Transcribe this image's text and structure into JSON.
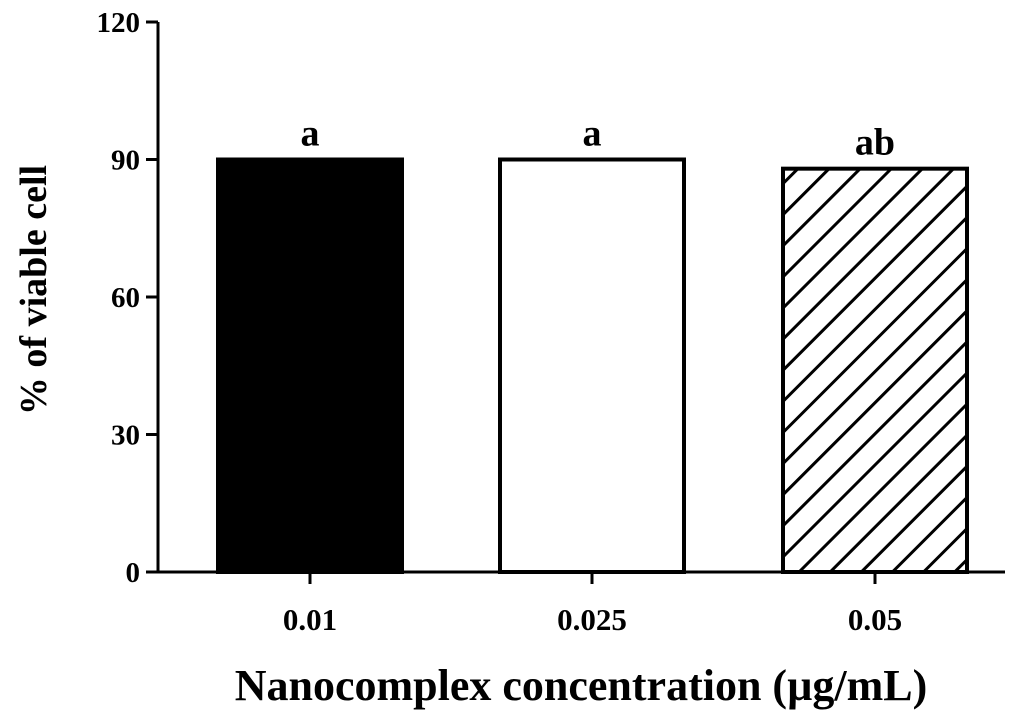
{
  "chart_data": {
    "type": "bar",
    "title": "",
    "xlabel": "Nanocomplex concentration (µg/mL)",
    "ylabel": "% of viable cell",
    "categories": [
      "0.01",
      "0.025",
      "0.05"
    ],
    "values": [
      90,
      90,
      88
    ],
    "annotations": [
      "a",
      "a",
      "ab"
    ],
    "bar_fills": [
      "solid-black",
      "white",
      "diagonal-hatch"
    ],
    "ylim": [
      0,
      120
    ],
    "yticks": [
      0,
      30,
      60,
      90,
      120
    ],
    "yticks_labels": [
      "0",
      "30",
      "60",
      "90",
      "120"
    ],
    "grid": false,
    "legend": "none",
    "colors": {
      "axis": "#000000",
      "bar_outline": "#000000",
      "bar_solid": "#000000",
      "bar_hollow": "#ffffff",
      "background": "#ffffff"
    }
  }
}
